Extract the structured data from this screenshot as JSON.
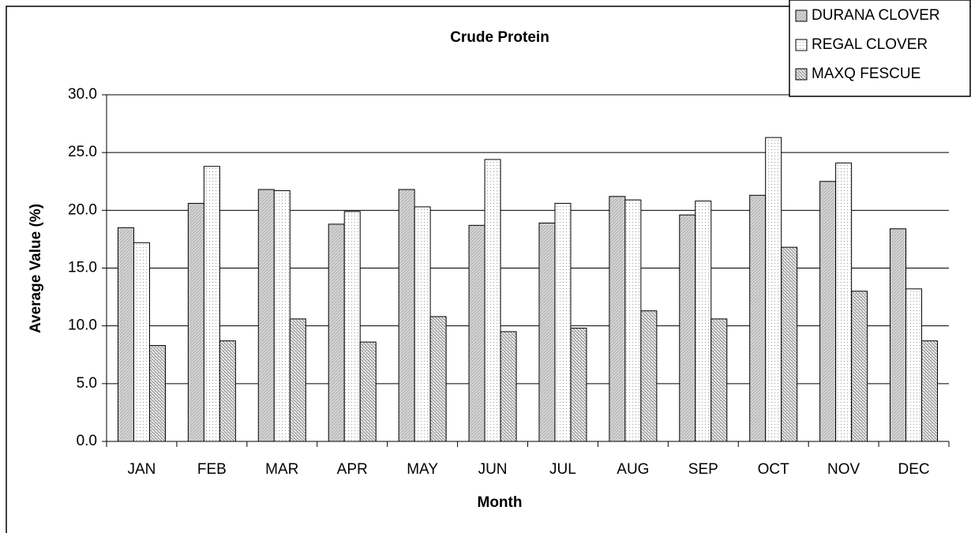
{
  "chart_data": {
    "type": "bar",
    "title": "Crude Protein",
    "xlabel": "Month",
    "ylabel": "Average Value (%)",
    "categories": [
      "JAN",
      "FEB",
      "MAR",
      "APR",
      "MAY",
      "JUN",
      "JUL",
      "AUG",
      "SEP",
      "OCT",
      "NOV",
      "DEC"
    ],
    "series": [
      {
        "name": "DURANA CLOVER",
        "color": "#d4d4d4",
        "values": [
          18.5,
          20.6,
          21.8,
          18.8,
          21.8,
          18.7,
          18.9,
          21.2,
          19.6,
          21.3,
          22.5,
          18.4
        ]
      },
      {
        "name": "REGAL CLOVER",
        "color": "#ffffff",
        "values": [
          17.2,
          23.8,
          21.7,
          19.9,
          20.3,
          24.4,
          20.6,
          20.9,
          20.8,
          26.3,
          24.1,
          13.2
        ]
      },
      {
        "name": "MAXQ FESCUE",
        "color": "#a6a6a6",
        "values": [
          8.3,
          8.7,
          10.6,
          8.6,
          10.8,
          9.5,
          9.8,
          11.3,
          10.6,
          16.8,
          13.0,
          8.7
        ]
      }
    ],
    "ylim": [
      0,
      30
    ],
    "yticks": [
      {
        "value": 0,
        "label": "0.0"
      },
      {
        "value": 5,
        "label": "5.0"
      },
      {
        "value": 10,
        "label": "10.0"
      },
      {
        "value": 15,
        "label": "15.0"
      },
      {
        "value": 20,
        "label": "20.0"
      },
      {
        "value": 25,
        "label": "25.0"
      },
      {
        "value": 30,
        "label": "30.0"
      }
    ],
    "grid": true,
    "legend": "top-right"
  }
}
